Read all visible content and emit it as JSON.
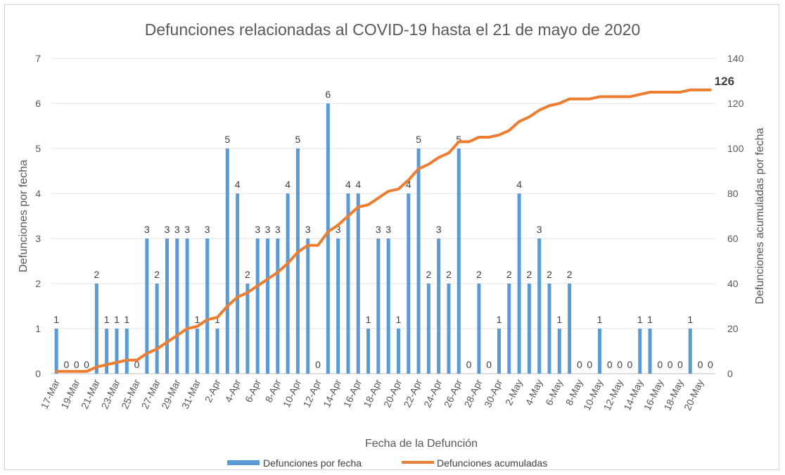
{
  "chart_data": {
    "type": "bar",
    "title": "Defunciones relacionadas al COVID-19 hasta el 21 de mayo de 2020",
    "xlabel": "Fecha de la Defunción",
    "ylabel": "Defunciones por fecha",
    "y2label": "Defunciones acumuladas por fecha",
    "ylim": [
      0,
      7
    ],
    "y2lim": [
      0,
      140
    ],
    "yticks": [
      "0",
      "1",
      "2",
      "3",
      "4",
      "5",
      "6",
      "7"
    ],
    "y2ticks": [
      "0",
      "20",
      "40",
      "60",
      "80",
      "100",
      "120",
      "140"
    ],
    "categories": [
      "17-Mar",
      "18-Mar",
      "19-Mar",
      "20-Mar",
      "21-Mar",
      "22-Mar",
      "23-Mar",
      "24-Mar",
      "25-Mar",
      "26-Mar",
      "27-Mar",
      "28-Mar",
      "29-Mar",
      "30-Mar",
      "31-Mar",
      "1-Apr",
      "2-Apr",
      "3-Apr",
      "4-Apr",
      "5-Apr",
      "6-Apr",
      "7-Apr",
      "8-Apr",
      "9-Apr",
      "10-Apr",
      "11-Apr",
      "12-Apr",
      "13-Apr",
      "14-Apr",
      "15-Apr",
      "16-Apr",
      "17-Apr",
      "18-Apr",
      "19-Apr",
      "20-Apr",
      "21-Apr",
      "22-Apr",
      "23-Apr",
      "24-Apr",
      "25-Apr",
      "26-Apr",
      "27-Apr",
      "28-Apr",
      "29-Apr",
      "30-Apr",
      "1-May",
      "2-May",
      "3-May",
      "4-May",
      "5-May",
      "6-May",
      "7-May",
      "8-May",
      "9-May",
      "10-May",
      "11-May",
      "12-May",
      "13-May",
      "14-May",
      "15-May",
      "16-May",
      "17-May",
      "18-May",
      "19-May",
      "20-May",
      "21-May"
    ],
    "tick_labels": [
      "17-Mar",
      "19-Mar",
      "21-Mar",
      "23-Mar",
      "25-Mar",
      "27-Mar",
      "29-Mar",
      "31-Mar",
      "2-Apr",
      "4-Apr",
      "6-Apr",
      "8-Apr",
      "10-Apr",
      "12-Apr",
      "14-Apr",
      "16-Apr",
      "18-Apr",
      "20-Apr",
      "22-Apr",
      "24-Apr",
      "26-Apr",
      "28-Apr",
      "30-Apr",
      "2-May",
      "4-May",
      "6-May",
      "8-May",
      "10-May",
      "12-May",
      "14-May",
      "16-May",
      "18-May",
      "20-May"
    ],
    "series": [
      {
        "name": "Defunciones por fecha",
        "type": "bar",
        "axis": "left",
        "color": "#5b9bd5",
        "values": [
          1,
          0,
          0,
          0,
          2,
          1,
          1,
          1,
          0,
          3,
          2,
          3,
          3,
          3,
          1,
          3,
          1,
          5,
          4,
          2,
          3,
          3,
          3,
          4,
          5,
          3,
          0,
          6,
          3,
          4,
          4,
          1,
          3,
          3,
          1,
          4,
          5,
          2,
          3,
          2,
          5,
          0,
          2,
          0,
          1,
          2,
          4,
          2,
          3,
          2,
          1,
          2,
          0,
          0,
          1,
          0,
          0,
          0,
          1,
          1,
          0,
          0,
          0,
          1,
          0,
          0
        ]
      },
      {
        "name": "Defunciones acumuladas",
        "type": "line",
        "axis": "right",
        "color": "#ed7d31",
        "values": [
          1,
          1,
          1,
          1,
          3,
          4,
          5,
          6,
          6,
          9,
          11,
          14,
          17,
          20,
          21,
          24,
          25,
          30,
          34,
          36,
          39,
          42,
          45,
          49,
          54,
          57,
          57,
          63,
          66,
          70,
          74,
          75,
          78,
          81,
          82,
          86,
          91,
          93,
          96,
          98,
          103,
          103,
          105,
          105,
          106,
          108,
          112,
          114,
          117,
          119,
          120,
          122,
          122,
          122,
          123,
          123,
          123,
          123,
          124,
          125,
          125,
          125,
          125,
          126,
          126,
          126
        ]
      }
    ],
    "final_label": "126",
    "legend": {
      "position": "bottom"
    }
  }
}
